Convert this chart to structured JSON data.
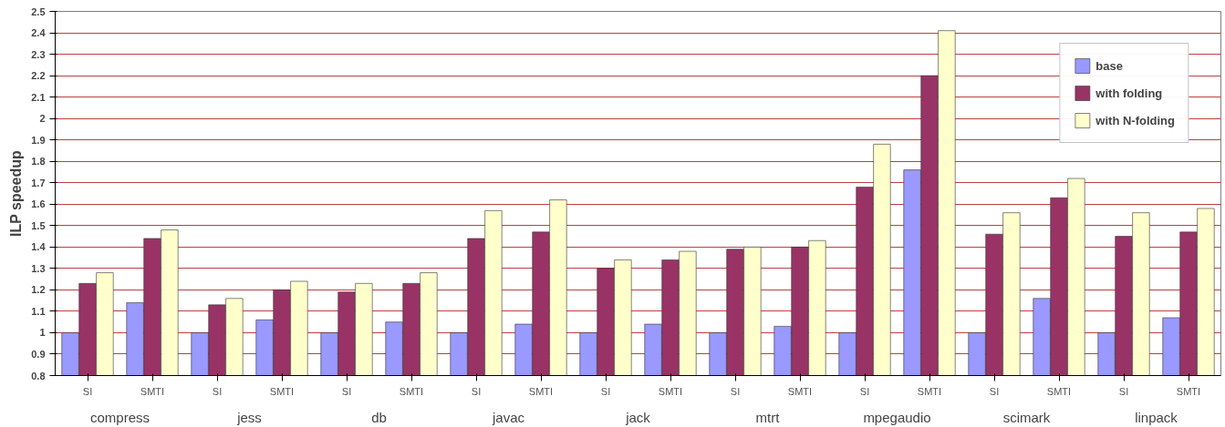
{
  "chart_data": {
    "type": "bar",
    "ylabel": "ILP speedup",
    "categories": [
      "SI",
      "SMTI",
      "SI",
      "SMTI",
      "SI",
      "SMTI",
      "SI",
      "SMTI",
      "SI",
      "SMTI",
      "SI",
      "SMTI",
      "SI",
      "SMTI",
      "SI",
      "SMTI",
      "SI",
      "SMTI"
    ],
    "series": [
      {
        "name": "base",
        "color": "#9999ff",
        "values": [
          1.0,
          1.14,
          1.0,
          1.06,
          1.0,
          1.05,
          1.0,
          1.04,
          1.0,
          1.04,
          1.0,
          1.03,
          1.0,
          1.76,
          1.0,
          1.16,
          1.0,
          1.07
        ]
      },
      {
        "name": "with folding",
        "color": "#993366",
        "values": [
          1.23,
          1.44,
          1.13,
          1.2,
          1.19,
          1.23,
          1.44,
          1.47,
          1.3,
          1.34,
          1.39,
          1.4,
          1.68,
          2.2,
          1.46,
          1.63,
          1.45,
          1.47
        ]
      },
      {
        "name": "with N-folding",
        "color": "#ffffcc",
        "values": [
          1.28,
          1.48,
          1.16,
          1.24,
          1.23,
          1.28,
          1.57,
          1.62,
          1.34,
          1.38,
          1.4,
          1.43,
          1.88,
          2.41,
          1.56,
          1.72,
          1.56,
          1.58
        ]
      }
    ],
    "annotations": [
      "compress",
      "jess",
      "db",
      "javac",
      "jack",
      "mtrt",
      "mpegaudio",
      "scimark",
      "linpack"
    ],
    "ylim": [
      0.8,
      2.5
    ],
    "yticks": [
      0.8,
      0.9,
      1,
      1.1,
      1.2,
      1.3,
      1.4,
      1.5,
      1.6,
      1.7,
      1.8,
      1.9,
      2,
      2.1,
      2.2,
      2.3,
      2.4,
      2.5
    ],
    "grid": "y",
    "legend": "top right"
  }
}
